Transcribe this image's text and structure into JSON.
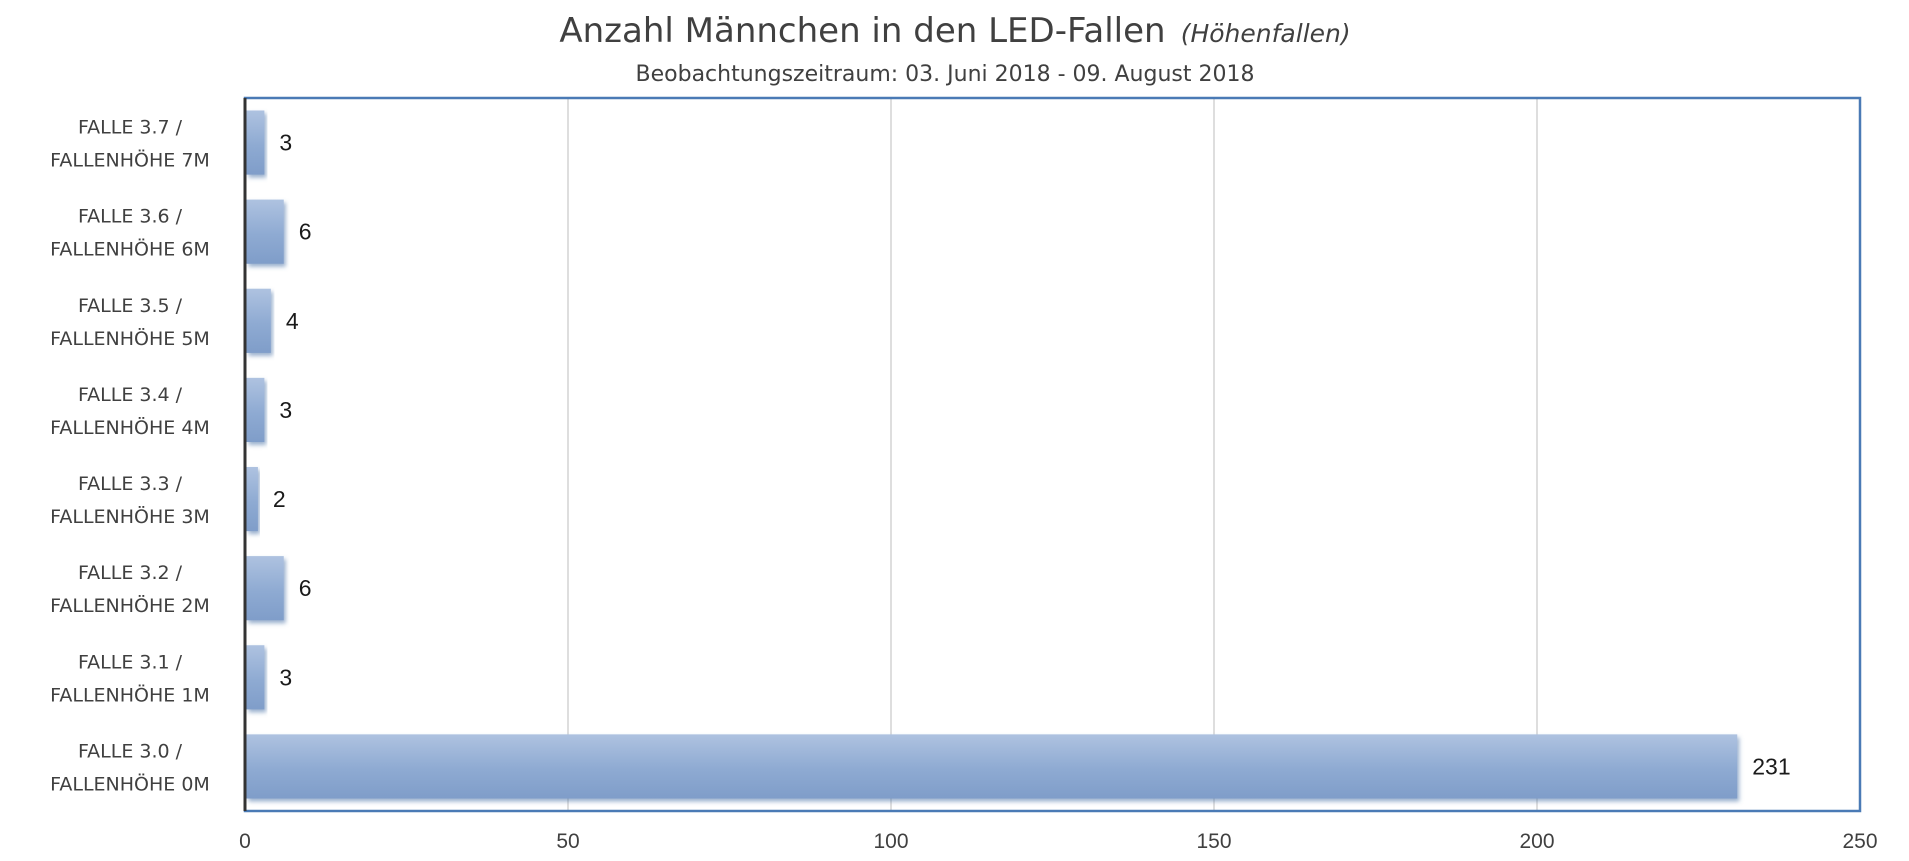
{
  "chart_data": {
    "type": "bar",
    "orientation": "horizontal",
    "title": "Anzahl Männchen in den LED-Fallen",
    "title_italic": "(Höhenfallen)",
    "subtitle": "Beobachtungszeitraum: 03. Juni 2018 - 09. August 2018",
    "categories": [
      [
        "FALLE 3.7 /",
        "FALLENHÖHE 7M"
      ],
      [
        "FALLE 3.6 /",
        "FALLENHÖHE 6M"
      ],
      [
        "FALLE 3.5 /",
        "FALLENHÖHE 5M"
      ],
      [
        "FALLE 3.4 /",
        "FALLENHÖHE 4M"
      ],
      [
        "FALLE 3.3 /",
        "FALLENHÖHE 3M"
      ],
      [
        "FALLE 3.2 /",
        "FALLENHÖHE 2M"
      ],
      [
        "FALLE 3.1 /",
        "FALLENHÖHE 1M"
      ],
      [
        "FALLE 3.0 /",
        "FALLENHÖHE 0M"
      ]
    ],
    "values": [
      3,
      6,
      4,
      3,
      2,
      6,
      3,
      231
    ],
    "value_labels": [
      "3",
      "6",
      "4",
      "3",
      "2",
      "6",
      "3",
      "231"
    ],
    "xticks": [
      0,
      50,
      100,
      150,
      200,
      250
    ],
    "xtick_labels": [
      "0",
      "50",
      "100",
      "150",
      "200",
      "250"
    ],
    "xlim": [
      0,
      250
    ],
    "xlabel": "",
    "ylabel": "",
    "grid": "vertical",
    "legend": "none",
    "colors": {
      "bar": "#8eaad2",
      "bar_highlight": "#aec2e0",
      "bar_shadow": "#4a6fa5",
      "plot_border": "#4a7ab5",
      "grid": "#c8c8c8",
      "axis": "#333333"
    }
  }
}
